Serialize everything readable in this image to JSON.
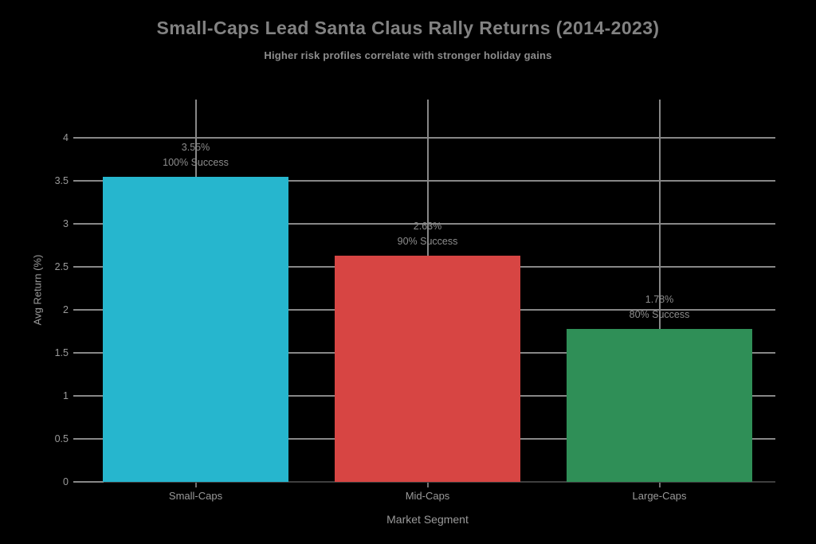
{
  "chart_data": {
    "type": "bar",
    "title": "Small-Caps Lead Santa Claus Rally Returns (2014-2023)",
    "subtitle": "Higher risk profiles correlate with stronger holiday gains",
    "xlabel": "Market Segment",
    "ylabel": "Avg Return (%)",
    "categories": [
      "Small-Caps",
      "Mid-Caps",
      "Large-Caps"
    ],
    "values": [
      3.55,
      2.63,
      1.78
    ],
    "annotations": [
      {
        "value": "3.55%",
        "success": "100% Success"
      },
      {
        "value": "2.63%",
        "success": "90% Success"
      },
      {
        "value": "1.78%",
        "success": "80% Success"
      }
    ],
    "bar_colors": [
      "#26b6ce",
      "#d74543",
      "#2f8f57"
    ],
    "ylim": [
      0,
      4.44
    ],
    "yticks": [
      "0",
      "0.5",
      "1",
      "1.5",
      "2",
      "2.5",
      "3",
      "3.5",
      "4"
    ],
    "grid": true,
    "legend": "none",
    "colors": {
      "background": "#000000",
      "grid": "#878787",
      "axis_line": "#3e3e3e",
      "title_text": "#828282",
      "label_text": "#9a9a9a",
      "annotation_text": "#8d8d8d"
    }
  }
}
